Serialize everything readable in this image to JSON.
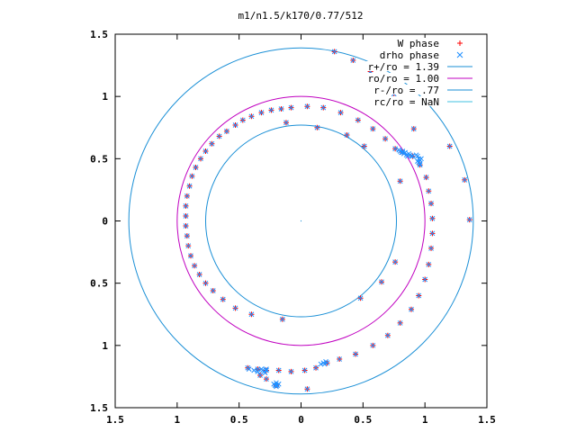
{
  "chart_data": {
    "type": "scatter",
    "title": "m1/n1.5/k170/0.77/512",
    "xlabel": "",
    "ylabel": "",
    "xlim": [
      -1.5,
      1.5
    ],
    "ylim": [
      -1.5,
      1.5
    ],
    "xtick_values": [
      -1.5,
      -1,
      -0.5,
      0,
      0.5,
      1,
      1.5
    ],
    "xtick_labels": [
      "1.5",
      "1",
      "0.5",
      "0",
      "0.5",
      "1",
      "1.5"
    ],
    "ytick_values": [
      1.5,
      1,
      0.5,
      0,
      -0.5,
      -1,
      -1.5
    ],
    "ytick_labels": [
      "1.5",
      "1",
      "0.5",
      "0",
      "0.5",
      "1",
      "1.5"
    ],
    "grid": false,
    "legend_position": "top-right",
    "legend": [
      {
        "label": "W phase",
        "marker": "+",
        "color": "#ff0000"
      },
      {
        "label": "drho phase",
        "marker": "x",
        "color": "#1f8fff"
      },
      {
        "label": "r+/ro = 1.39",
        "line": true,
        "color": "#1a8fd6"
      },
      {
        "label": "ro/ro = 1.00",
        "line": true,
        "color": "#c000c0"
      },
      {
        "label": "r-/ro = .77",
        "line": true,
        "color": "#1a8fd6"
      },
      {
        "label": "rc/ro = NaN",
        "line": true,
        "color": "#40c0e0"
      }
    ],
    "circles": [
      {
        "name": "r+/ro = 1.39",
        "r": 1.39,
        "color": "#1a8fd6"
      },
      {
        "name": "ro/ro = 1.00",
        "r": 1.0,
        "color": "#c000c0"
      },
      {
        "name": "r-/ro = .77",
        "r": 0.77,
        "color": "#1a8fd6"
      }
    ],
    "series": [
      {
        "name": "W phase",
        "marker": "+",
        "color": "#ff0000",
        "points": [
          [
            0.27,
            1.36
          ],
          [
            0.42,
            1.29
          ],
          [
            0.56,
            1.2
          ],
          [
            0.75,
            1.02
          ],
          [
            0.91,
            0.74
          ],
          [
            1.2,
            0.6
          ],
          [
            1.32,
            0.33
          ],
          [
            1.36,
            0.01
          ],
          [
            -0.08,
            0.91
          ],
          [
            0.05,
            0.92
          ],
          [
            0.18,
            0.91
          ],
          [
            0.32,
            0.87
          ],
          [
            0.46,
            0.81
          ],
          [
            0.58,
            0.74
          ],
          [
            0.68,
            0.66
          ],
          [
            0.76,
            0.58
          ],
          [
            0.82,
            0.55
          ],
          [
            0.9,
            0.52
          ],
          [
            0.96,
            0.45
          ],
          [
            1.01,
            0.35
          ],
          [
            1.03,
            0.24
          ],
          [
            1.05,
            0.14
          ],
          [
            1.06,
            0.02
          ],
          [
            1.06,
            -0.1
          ],
          [
            1.05,
            -0.22
          ],
          [
            1.03,
            -0.35
          ],
          [
            1.0,
            -0.47
          ],
          [
            0.95,
            -0.6
          ],
          [
            0.89,
            -0.71
          ],
          [
            0.8,
            -0.82
          ],
          [
            0.7,
            -0.92
          ],
          [
            0.58,
            -1.0
          ],
          [
            0.44,
            -1.07
          ],
          [
            0.31,
            -1.11
          ],
          [
            0.21,
            -1.14
          ],
          [
            0.12,
            -1.18
          ],
          [
            0.03,
            -1.2
          ],
          [
            -0.08,
            -1.21
          ],
          [
            -0.18,
            -1.2
          ],
          [
            -0.28,
            -1.2
          ],
          [
            -0.35,
            -1.19
          ],
          [
            -0.43,
            -1.18
          ],
          [
            -0.33,
            -1.24
          ],
          [
            -0.28,
            -1.27
          ],
          [
            -0.2,
            -1.32
          ],
          [
            0.05,
            -1.35
          ],
          [
            -0.16,
            0.9
          ],
          [
            -0.24,
            0.89
          ],
          [
            -0.32,
            0.87
          ],
          [
            -0.4,
            0.84
          ],
          [
            -0.47,
            0.81
          ],
          [
            -0.53,
            0.77
          ],
          [
            -0.6,
            0.72
          ],
          [
            -0.66,
            0.68
          ],
          [
            -0.72,
            0.62
          ],
          [
            -0.77,
            0.56
          ],
          [
            -0.81,
            0.5
          ],
          [
            -0.85,
            0.43
          ],
          [
            -0.88,
            0.36
          ],
          [
            -0.9,
            0.28
          ],
          [
            -0.92,
            0.2
          ],
          [
            -0.93,
            0.12
          ],
          [
            -0.93,
            0.04
          ],
          [
            -0.93,
            -0.04
          ],
          [
            -0.92,
            -0.12
          ],
          [
            -0.91,
            -0.2
          ],
          [
            -0.89,
            -0.28
          ],
          [
            -0.86,
            -0.36
          ],
          [
            -0.82,
            -0.43
          ],
          [
            -0.77,
            -0.5
          ],
          [
            -0.71,
            -0.56
          ],
          [
            -0.63,
            -0.63
          ],
          [
            -0.53,
            -0.7
          ],
          [
            -0.4,
            -0.75
          ],
          [
            -0.15,
            -0.79
          ],
          [
            0.48,
            -0.62
          ],
          [
            0.65,
            -0.49
          ],
          [
            0.76,
            -0.33
          ],
          [
            0.8,
            0.32
          ],
          [
            0.51,
            0.6
          ],
          [
            0.37,
            0.69
          ],
          [
            0.13,
            0.75
          ],
          [
            -0.12,
            0.79
          ]
        ]
      },
      {
        "name": "drho phase",
        "marker": "x",
        "color": "#1f8fff",
        "points": [
          [
            0.27,
            1.36
          ],
          [
            0.42,
            1.29
          ],
          [
            0.56,
            1.2
          ],
          [
            0.75,
            1.02
          ],
          [
            0.91,
            0.74
          ],
          [
            1.2,
            0.6
          ],
          [
            1.32,
            0.33
          ],
          [
            1.36,
            0.01
          ],
          [
            -0.08,
            0.91
          ],
          [
            0.05,
            0.92
          ],
          [
            0.18,
            0.91
          ],
          [
            0.32,
            0.87
          ],
          [
            0.46,
            0.81
          ],
          [
            0.58,
            0.74
          ],
          [
            0.68,
            0.66
          ],
          [
            0.76,
            0.58
          ],
          [
            0.82,
            0.55
          ],
          [
            0.9,
            0.52
          ],
          [
            0.96,
            0.45
          ],
          [
            1.01,
            0.35
          ],
          [
            1.03,
            0.24
          ],
          [
            1.05,
            0.14
          ],
          [
            1.06,
            0.02
          ],
          [
            1.06,
            -0.1
          ],
          [
            1.05,
            -0.22
          ],
          [
            1.03,
            -0.35
          ],
          [
            1.0,
            -0.47
          ],
          [
            0.95,
            -0.6
          ],
          [
            0.89,
            -0.71
          ],
          [
            0.8,
            -0.82
          ],
          [
            0.7,
            -0.92
          ],
          [
            0.58,
            -1.0
          ],
          [
            0.44,
            -1.07
          ],
          [
            0.31,
            -1.11
          ],
          [
            0.21,
            -1.14
          ],
          [
            0.12,
            -1.18
          ],
          [
            0.03,
            -1.2
          ],
          [
            -0.08,
            -1.21
          ],
          [
            -0.18,
            -1.2
          ],
          [
            -0.28,
            -1.2
          ],
          [
            -0.35,
            -1.19
          ],
          [
            -0.43,
            -1.18
          ],
          [
            -0.33,
            -1.24
          ],
          [
            -0.28,
            -1.27
          ],
          [
            -0.2,
            -1.32
          ],
          [
            0.05,
            -1.35
          ],
          [
            -0.16,
            0.9
          ],
          [
            -0.24,
            0.89
          ],
          [
            -0.32,
            0.87
          ],
          [
            -0.4,
            0.84
          ],
          [
            -0.47,
            0.81
          ],
          [
            -0.53,
            0.77
          ],
          [
            -0.6,
            0.72
          ],
          [
            -0.66,
            0.68
          ],
          [
            -0.72,
            0.62
          ],
          [
            -0.77,
            0.56
          ],
          [
            -0.81,
            0.5
          ],
          [
            -0.85,
            0.43
          ],
          [
            -0.88,
            0.36
          ],
          [
            -0.9,
            0.28
          ],
          [
            -0.92,
            0.2
          ],
          [
            -0.93,
            0.12
          ],
          [
            -0.93,
            0.04
          ],
          [
            -0.93,
            -0.04
          ],
          [
            -0.92,
            -0.12
          ],
          [
            -0.91,
            -0.2
          ],
          [
            -0.89,
            -0.28
          ],
          [
            -0.86,
            -0.36
          ],
          [
            -0.82,
            -0.43
          ],
          [
            -0.77,
            -0.5
          ],
          [
            -0.71,
            -0.56
          ],
          [
            -0.63,
            -0.63
          ],
          [
            -0.53,
            -0.7
          ],
          [
            -0.4,
            -0.75
          ],
          [
            -0.15,
            -0.79
          ],
          [
            0.48,
            -0.62
          ],
          [
            0.65,
            -0.49
          ],
          [
            0.76,
            -0.33
          ],
          [
            0.8,
            0.32
          ],
          [
            0.51,
            0.6
          ],
          [
            0.37,
            0.69
          ],
          [
            0.13,
            0.75
          ],
          [
            -0.12,
            0.79
          ],
          [
            0.79,
            0.57
          ],
          [
            0.8,
            0.56
          ],
          [
            0.81,
            0.55
          ],
          [
            0.82,
            0.56
          ],
          [
            0.83,
            0.54
          ],
          [
            0.84,
            0.55
          ],
          [
            0.85,
            0.53
          ],
          [
            0.86,
            0.52
          ],
          [
            0.87,
            0.54
          ],
          [
            0.88,
            0.53
          ],
          [
            0.89,
            0.52
          ],
          [
            0.93,
            0.53
          ],
          [
            0.94,
            0.52
          ],
          [
            0.95,
            0.5
          ],
          [
            0.96,
            0.49
          ],
          [
            0.95,
            0.47
          ],
          [
            0.96,
            0.46
          ],
          [
            0.97,
            0.5
          ],
          [
            0.94,
            0.48
          ],
          [
            -0.42,
            -1.19
          ],
          [
            -0.38,
            -1.2
          ],
          [
            -0.35,
            -1.21
          ],
          [
            -0.32,
            -1.19
          ],
          [
            -0.31,
            -1.2
          ],
          [
            -0.3,
            -1.21
          ],
          [
            -0.29,
            -1.22
          ],
          [
            -0.28,
            -1.19
          ],
          [
            -0.22,
            -1.31
          ],
          [
            -0.21,
            -1.32
          ],
          [
            -0.2,
            -1.3
          ],
          [
            -0.19,
            -1.32
          ],
          [
            -0.2,
            -1.33
          ],
          [
            -0.18,
            -1.31
          ],
          [
            0.16,
            -1.15
          ],
          [
            0.18,
            -1.14
          ],
          [
            0.19,
            -1.15
          ],
          [
            0.2,
            -1.13
          ],
          [
            0.21,
            -1.14
          ]
        ]
      }
    ]
  }
}
